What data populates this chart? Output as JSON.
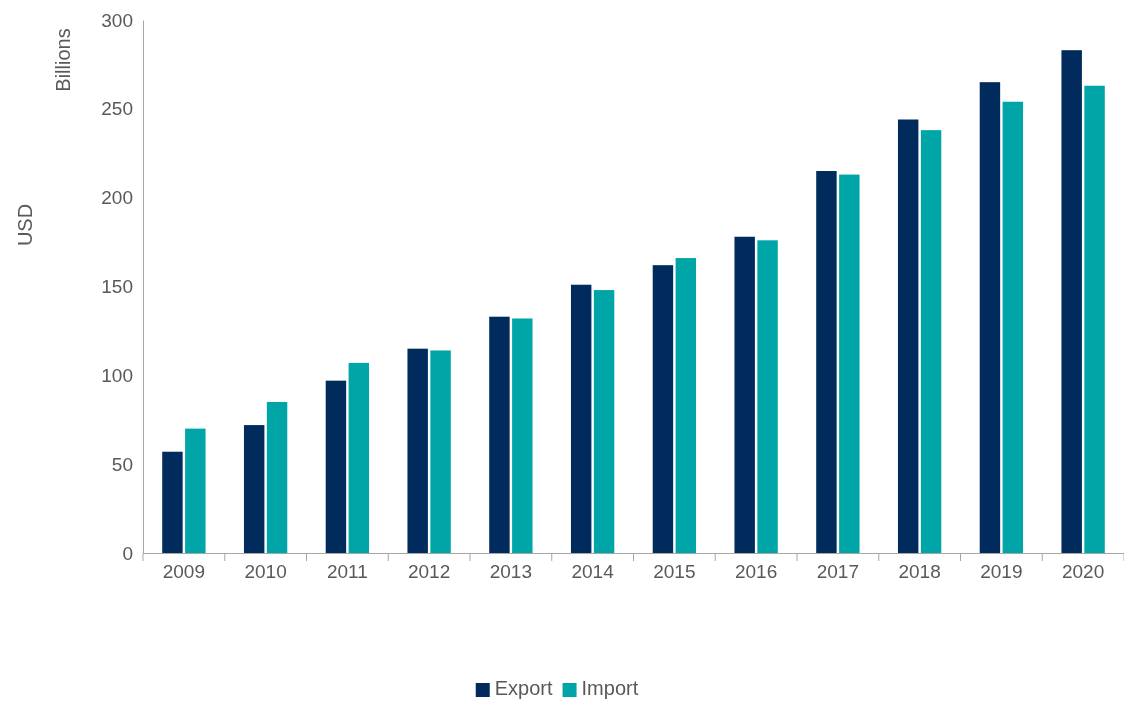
{
  "chart_data": {
    "type": "bar",
    "ylabel": "USD",
    "annotations": [
      "Billions"
    ],
    "categories": [
      "2009",
      "2010",
      "2011",
      "2012",
      "2013",
      "2014",
      "2015",
      "2016",
      "2017",
      "2018",
      "2019",
      "2020"
    ],
    "series": [
      {
        "name": "Export",
        "color": "#002b5c",
        "values": [
          57,
          72,
          97,
          115,
          133,
          151,
          162,
          178,
          215,
          244,
          265,
          283
        ]
      },
      {
        "name": "Import",
        "color": "#00a5a8",
        "values": [
          70,
          85,
          107,
          114,
          132,
          148,
          166,
          176,
          213,
          238,
          254,
          263
        ]
      }
    ],
    "ylim": [
      0,
      300
    ],
    "yticks": [
      0,
      50,
      100,
      150,
      200,
      250,
      300
    ],
    "grid": false,
    "legend": "bottom"
  }
}
